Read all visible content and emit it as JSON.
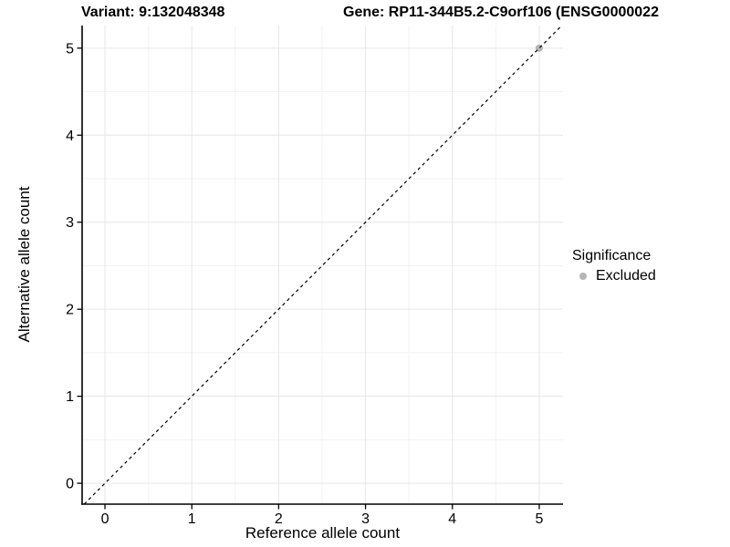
{
  "chart_data": {
    "type": "scatter",
    "titles": {
      "left": "Variant: 9:132048348",
      "right": "Gene: RP11-344B5.2-C9orf106 (ENSG0000022"
    },
    "xlabel": "Reference allele count",
    "ylabel": "Alternative allele count",
    "xlim": [
      -0.263,
      5.274
    ],
    "ylim": [
      -0.24,
      5.26
    ],
    "xticks": [
      0,
      1,
      2,
      3,
      4,
      5
    ],
    "yticks": [
      0,
      1,
      2,
      3,
      4,
      5
    ],
    "xticks_minor": [
      0.5,
      1.5,
      2.5,
      3.5,
      4.5
    ],
    "yticks_minor": [
      0.5,
      1.5,
      2.5,
      3.5,
      4.5
    ],
    "grid": "major+minor",
    "points": [
      {
        "x": 5,
        "y": 5,
        "significance": "Excluded"
      }
    ],
    "identity_line": {
      "slope": 1,
      "intercept": 0,
      "style": "dashed",
      "color": "#000000"
    },
    "legend": {
      "title": "Significance",
      "position": "right",
      "entries": [
        {
          "label": "Excluded",
          "color": "#b5b5b5"
        }
      ]
    },
    "colors": {
      "point_excluded": "#b5b5b5",
      "grid_major": "#e6e6e6",
      "grid_minor": "#f2f2f2",
      "axis_line": "#000000",
      "tick_mark": "#000000",
      "text": "#000000",
      "background": "#ffffff"
    }
  }
}
